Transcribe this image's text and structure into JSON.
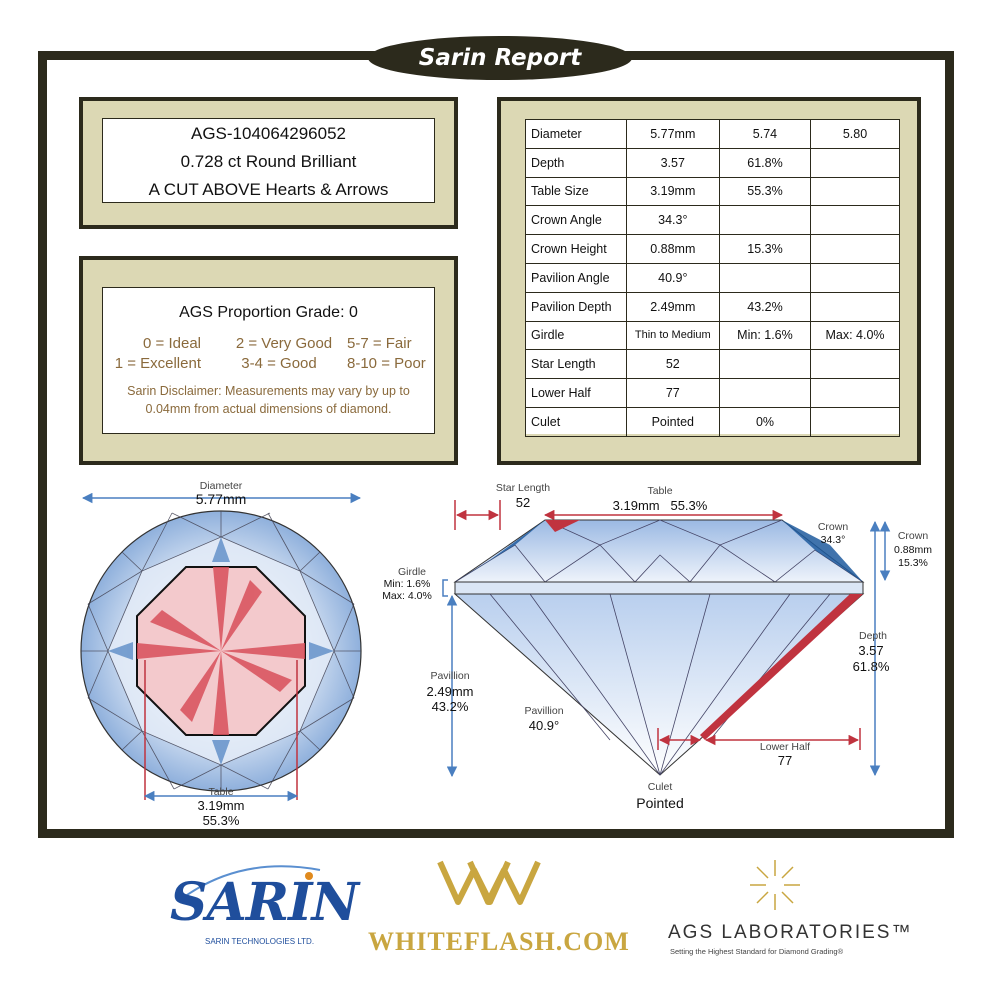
{
  "report_title": "Sarin Report",
  "identity": {
    "line1": "AGS-104064296052",
    "line2": "0.728 ct Round Brilliant",
    "line3": "A CUT ABOVE Hearts & Arrows"
  },
  "grade": {
    "title": "AGS Proportion Grade: 0",
    "scale": [
      [
        "0 = Ideal",
        "2 = Very Good",
        "5-7 = Fair"
      ],
      [
        "1 = Excellent",
        "3-4 = Good",
        "8-10 = Poor"
      ]
    ],
    "disclaimer_line1": "Sarin Disclaimer:  Measurements may vary by up to",
    "disclaimer_line2": "0.04mm from actual dimensions of diamond."
  },
  "measurements": [
    [
      "Diameter",
      "5.77mm",
      "5.74",
      "5.80"
    ],
    [
      "Depth",
      "3.57",
      "61.8%",
      ""
    ],
    [
      "Table Size",
      "3.19mm",
      "55.3%",
      ""
    ],
    [
      "Crown Angle",
      "34.3°",
      "",
      ""
    ],
    [
      "Crown Height",
      "0.88mm",
      "15.3%",
      ""
    ],
    [
      "Pavilion Angle",
      "40.9°",
      "",
      ""
    ],
    [
      "Pavilion Depth",
      "2.49mm",
      "43.2%",
      ""
    ],
    [
      "Girdle",
      "Thin to Medium",
      "Min: 1.6%",
      "Max: 4.0%"
    ],
    [
      "Star Length",
      "52",
      "",
      ""
    ],
    [
      "Lower Half",
      "77",
      "",
      ""
    ],
    [
      "Culet",
      "Pointed",
      "0%",
      ""
    ]
  ],
  "top_view": {
    "diameter_label": "Diameter",
    "diameter_value": "5.77mm",
    "table_label": "Table",
    "table_mm": "3.19mm",
    "table_pct": "55.3%"
  },
  "side_view": {
    "star_label": "Star Length",
    "star_value": "52",
    "table_label": "Table",
    "table_values": "3.19mm   55.3%",
    "crown_label": "Crown",
    "crown_angle": "34.3°",
    "crown_height_label": "Crown",
    "crown_height_mm": "0.88mm",
    "crown_height_pct": "15.3%",
    "girdle_label": "Girdle",
    "girdle_min": "Min: 1.6%",
    "girdle_max": "Max: 4.0%",
    "depth_label": "Depth",
    "depth_value": "3.57",
    "depth_pct": "61.8%",
    "pavilion_label": "Pavillion",
    "pavilion_mm": "2.49mm",
    "pavilion_pct": "43.2%",
    "pavilion_angle_label": "Pavillion",
    "pavilion_angle": "40.9°",
    "lower_half_label": "Lower Half",
    "lower_half_value": "77",
    "culet_label": "Culet",
    "culet_value": "Pointed"
  },
  "logos": {
    "sarin": "SARIN",
    "sarin_sub": "SARIN TECHNOLOGIES LTD.",
    "whiteflash": "WHITEFLASH.COM",
    "ags": "AGS LABORATORIES™",
    "ags_sub": "Setting the Highest Standard for Diamond Grading®"
  },
  "colors": {
    "frame": "#2c2a1c",
    "panel": "#dcd8b4",
    "accent_text": "#8a6a3c",
    "arrow_blue": "#4a7fc0",
    "arrow_red": "#c0333f"
  }
}
